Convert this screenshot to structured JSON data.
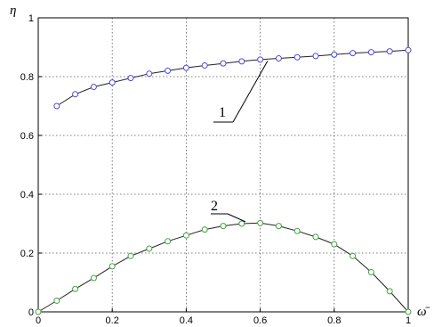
{
  "chart_data": {
    "type": "line",
    "xlabel": "ω̄",
    "ylabel": "η",
    "xlim": [
      0,
      1
    ],
    "ylim": [
      0,
      1
    ],
    "x_ticks": [
      "0",
      "0.2",
      "0.4",
      "0.6",
      "0.8",
      "1"
    ],
    "y_ticks": [
      "0",
      "0.2",
      "0.4",
      "0.6",
      "0.8",
      "1"
    ],
    "grid": true,
    "series": [
      {
        "name": "1",
        "color": "#4a4ae0",
        "x": [
          0.05,
          0.1,
          0.15,
          0.2,
          0.25,
          0.3,
          0.35,
          0.4,
          0.45,
          0.5,
          0.55,
          0.6,
          0.65,
          0.7,
          0.75,
          0.8,
          0.85,
          0.9,
          0.95,
          1.0
        ],
        "y": [
          0.7,
          0.74,
          0.765,
          0.78,
          0.795,
          0.81,
          0.82,
          0.83,
          0.838,
          0.845,
          0.852,
          0.858,
          0.862,
          0.866,
          0.87,
          0.875,
          0.88,
          0.883,
          0.886,
          0.89
        ]
      },
      {
        "name": "2",
        "color": "#3aa53a",
        "x": [
          0,
          0.05,
          0.1,
          0.15,
          0.2,
          0.25,
          0.3,
          0.35,
          0.4,
          0.45,
          0.5,
          0.55,
          0.6,
          0.65,
          0.7,
          0.75,
          0.8,
          0.85,
          0.9,
          0.95,
          1.0
        ],
        "y": [
          0.0,
          0.038,
          0.078,
          0.115,
          0.155,
          0.19,
          0.215,
          0.24,
          0.26,
          0.28,
          0.292,
          0.3,
          0.302,
          0.292,
          0.275,
          0.255,
          0.23,
          0.19,
          0.135,
          0.07,
          0.0
        ]
      }
    ],
    "annotations": [
      {
        "text": "1",
        "series": 0,
        "points_to_x": 0.62
      },
      {
        "text": "2",
        "series": 1,
        "points_to_x": 0.56
      }
    ]
  }
}
